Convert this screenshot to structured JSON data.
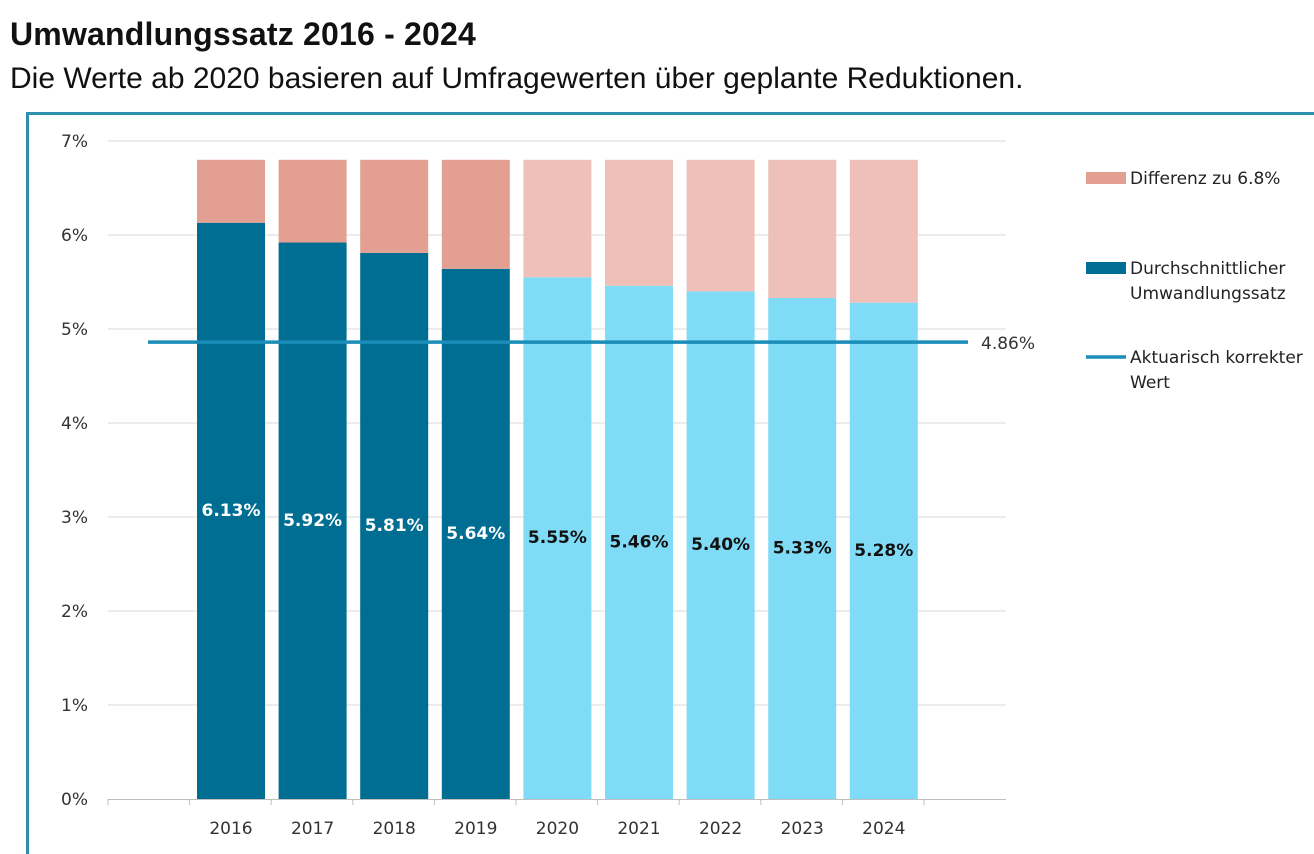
{
  "title": "Umwandlungssatz 2016 - 2024",
  "subtitle": "Die Werte ab 2020 basieren auf Umfragewerten über geplante Reduktionen.",
  "chart_data": {
    "type": "bar",
    "stacked": true,
    "title": "Umwandlungssatz 2016 - 2024",
    "subtitle": "Die Werte ab 2020 basieren auf Umfragewerten über geplante Reduktionen.",
    "categories": [
      "2016",
      "2017",
      "2018",
      "2019",
      "2020",
      "2021",
      "2022",
      "2023",
      "2024"
    ],
    "series": [
      {
        "name": "Durchschnittlicher Umwandlungssatz",
        "values": [
          6.13,
          5.92,
          5.81,
          5.64,
          5.55,
          5.46,
          5.4,
          5.33,
          5.28
        ],
        "data_labels": [
          "6.13%",
          "5.92%",
          "5.81%",
          "5.64%",
          "5.55%",
          "5.46%",
          "5.40%",
          "5.33%",
          "5.28%"
        ],
        "color": "#006d93",
        "projected_color": "#80dbf6",
        "projected_from": "2020"
      },
      {
        "name": "Differenz zu 6.8%",
        "values": [
          0.67,
          0.88,
          0.99,
          1.16,
          1.25,
          1.34,
          1.4,
          1.47,
          1.52
        ],
        "color": "#e3a092",
        "projected_color": "#efc0b8"
      }
    ],
    "reference_line": {
      "name": "Aktuarisch korrekter Wert",
      "value": 4.86,
      "label": "4.86%",
      "color": "#1a8db8"
    },
    "y_ticks": [
      "0%",
      "1%",
      "2%",
      "3%",
      "4%",
      "5%",
      "6%",
      "7%"
    ],
    "ylim": [
      0,
      7
    ],
    "grid": true,
    "legend_position": "right",
    "legend": [
      {
        "label": "Differenz zu 6.8%",
        "kind": "box",
        "color": "#e3a092"
      },
      {
        "label": "Durchschnittlicher",
        "label2": "Umwandlungssatz",
        "kind": "box",
        "color": "#006d93"
      },
      {
        "label": "Aktuarisch korrekter",
        "label2": "Wert",
        "kind": "line",
        "color": "#1a8db8"
      }
    ]
  }
}
